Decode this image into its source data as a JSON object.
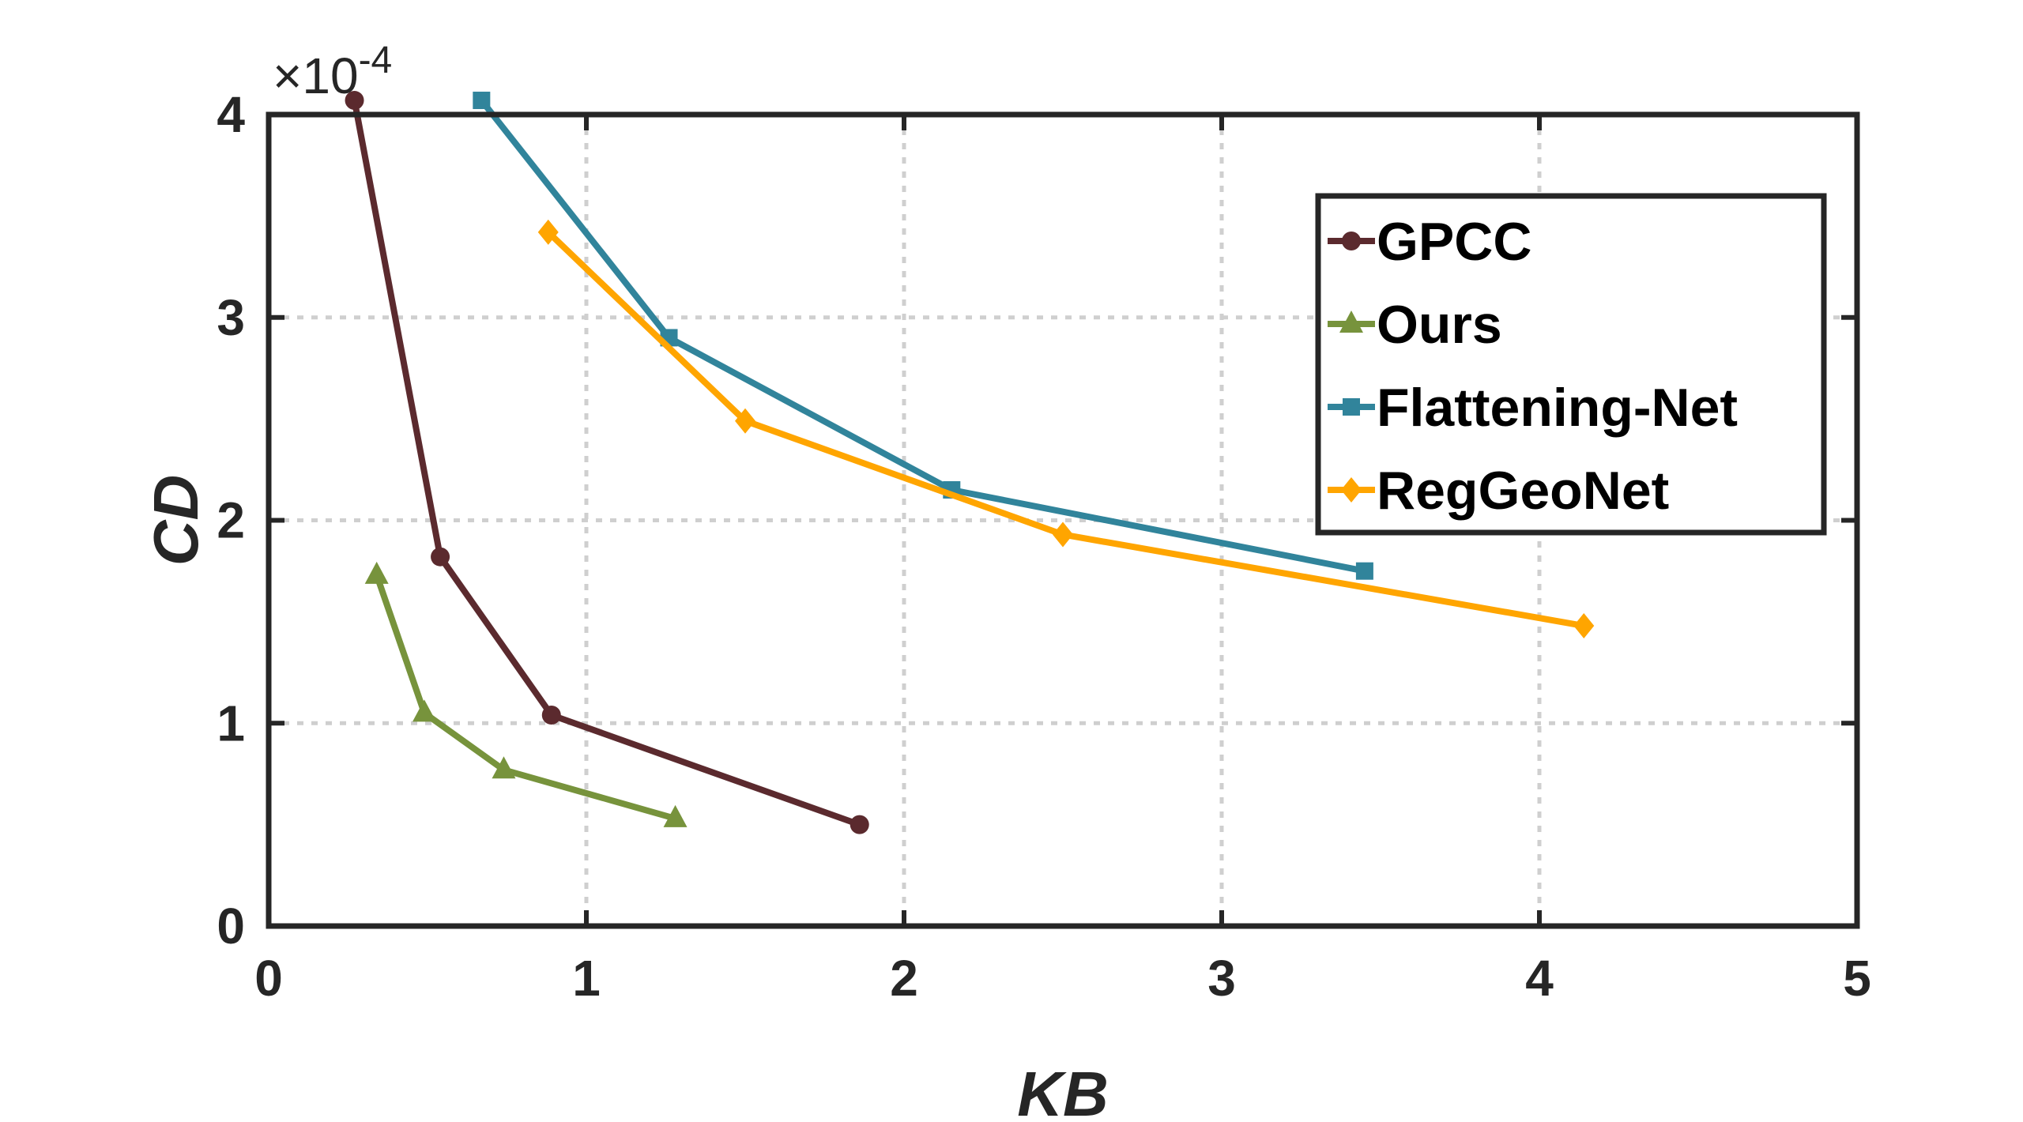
{
  "chart_data": {
    "type": "line",
    "xlabel": "KB",
    "ylabel": "CD",
    "xlim": [
      0,
      5
    ],
    "ylim": [
      0,
      4
    ],
    "y_exponent_label": "×10",
    "y_exponent": "-4",
    "xticks": [
      0,
      1,
      2,
      3,
      4,
      5
    ],
    "yticks": [
      0,
      1,
      2,
      3,
      4
    ],
    "grid": true,
    "legend_position": "top-right",
    "series": [
      {
        "name": "GPCC",
        "color": "#5b2a2e",
        "marker": "circle",
        "x": [
          0.27,
          0.54,
          0.89,
          1.86
        ],
        "y": [
          4.07,
          1.82,
          1.04,
          0.5
        ]
      },
      {
        "name": "Ours",
        "color": "#77933c",
        "marker": "triangle",
        "x": [
          0.34,
          0.49,
          0.74,
          1.28
        ],
        "y": [
          1.73,
          1.05,
          0.77,
          0.53
        ]
      },
      {
        "name": "Flattening-Net",
        "color": "#31849b",
        "marker": "square",
        "x": [
          0.67,
          1.26,
          2.15,
          3.45
        ],
        "y": [
          4.07,
          2.9,
          2.15,
          1.75
        ]
      },
      {
        "name": "RegGeoNet",
        "color": "#ffa500",
        "marker": "diamond",
        "x": [
          0.88,
          1.5,
          2.5,
          4.14
        ],
        "y": [
          3.42,
          2.49,
          1.93,
          1.48
        ]
      }
    ]
  }
}
